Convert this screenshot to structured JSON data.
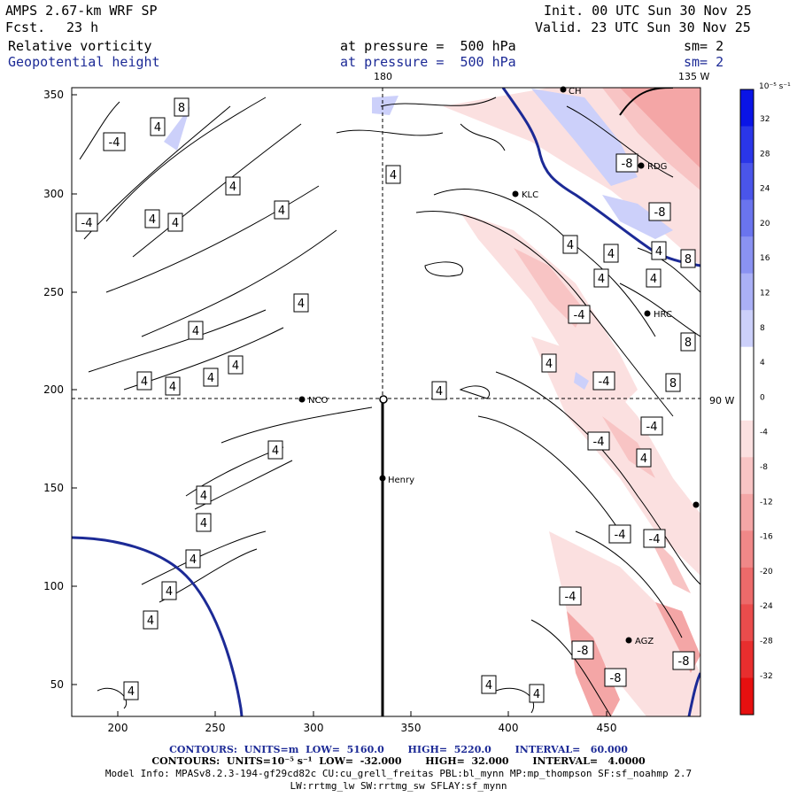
{
  "header": {
    "model": "AMPS 2.67-km WRF SP",
    "fcst_label": "Fcst.",
    "fcst_value": "23 h",
    "init": "Init. 00 UTC Sun 30 Nov 25",
    "valid": "Valid. 23 UTC Sun 30 Nov 25",
    "fill_field": "Relative vorticity",
    "contour_field": "Geopotential height",
    "fill_level": "at pressure =  500 hPa",
    "contour_level": "at pressure =  500 hPa",
    "fill_smooth": "sm= 2",
    "contour_smooth": "sm= 2"
  },
  "map": {
    "lon_top_left": "180",
    "lon_top_right": "135 W",
    "lon_right": "90 W",
    "x_ticks": [
      "200",
      "250",
      "300",
      "350",
      "400",
      "450"
    ],
    "y_ticks": [
      "350",
      "300",
      "250",
      "200",
      "150",
      "100",
      "50"
    ],
    "stations": [
      {
        "name": "NCO"
      },
      {
        "name": "Henry"
      },
      {
        "name": "KLC"
      },
      {
        "name": "RDG"
      },
      {
        "name": "HRC"
      },
      {
        "name": "AGZ"
      },
      {
        "name": "CH"
      }
    ],
    "contour_labels_pos": [
      "4",
      "4",
      "4",
      "4",
      "4",
      "4",
      "4",
      "4",
      "4",
      "4",
      "4",
      "4",
      "4",
      "4",
      "4",
      "4",
      "4",
      "4",
      "4",
      "4",
      "4",
      "4",
      "4",
      "4",
      "4",
      "4",
      "4",
      "4",
      "4",
      "4",
      "8",
      "8",
      "8",
      "8"
    ],
    "contour_labels_neg": [
      "-4",
      "-4",
      "-4",
      "-4",
      "-4",
      "-4",
      "-4",
      "-4",
      "-4",
      "-8",
      "-8",
      "-8",
      "-8",
      "-8"
    ]
  },
  "colorbar": {
    "units": "10⁻⁵ s⁻¹",
    "labels": [
      "32",
      "28",
      "24",
      "20",
      "16",
      "12",
      "8",
      "4",
      "0",
      "-4",
      "-8",
      "-12",
      "-16",
      "-20",
      "-24",
      "-28",
      "-32"
    ],
    "colors": [
      "#0a14e6",
      "#2a36e8",
      "#4a55ea",
      "#6a74ee",
      "#8a92f2",
      "#aab0f6",
      "#ccd0fa",
      "#ffffff",
      "#ffffff",
      "#fbe0e0",
      "#f8c4c4",
      "#f4a6a6",
      "#f08888",
      "#ec6a6a",
      "#ea4c4c",
      "#e82e2e",
      "#e61010"
    ]
  },
  "footer": {
    "line1": "CONTOURS:  UNITS=m  LOW=  5160.0       HIGH=  5220.0       INTERVAL=   60.000",
    "line2": "CONTOURS:  UNITS=10⁻⁵ s⁻¹  LOW=  -32.000       HIGH=  32.000       INTERVAL=   4.0000",
    "line3": "Model Info: MPASv8.2.3-194-gf29cd82c CU:cu_grell_freitas PBL:bl_mynn MP:mp_thompson SF:sf_noahmp 2.7",
    "line4": "LW:rrtmg_lw SW:rrtmg_sw SFLAY:sf_mynn"
  }
}
